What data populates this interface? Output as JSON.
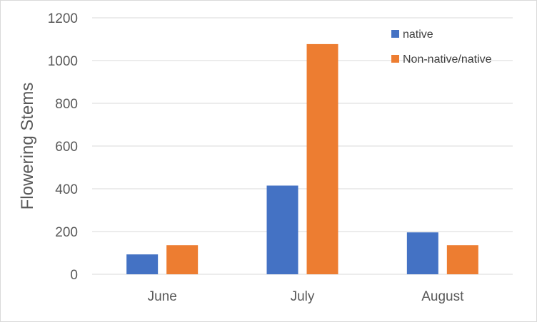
{
  "chart_data": {
    "type": "bar",
    "title": "",
    "xlabel": "",
    "ylabel": "Flowering Stems",
    "categories": [
      "June",
      "July",
      "August"
    ],
    "series": [
      {
        "name": "native",
        "values": [
          93,
          415,
          196
        ],
        "color": "#4472c4"
      },
      {
        "name": "Non-native/native",
        "values": [
          136,
          1077,
          136
        ],
        "color": "#ed7d31"
      }
    ],
    "ylim": [
      0,
      1200
    ],
    "yticks": [
      0,
      200,
      400,
      600,
      800,
      1000,
      1200
    ],
    "grid": true,
    "gridline_color": "#d9d9d9",
    "legend_position": "top-right"
  }
}
